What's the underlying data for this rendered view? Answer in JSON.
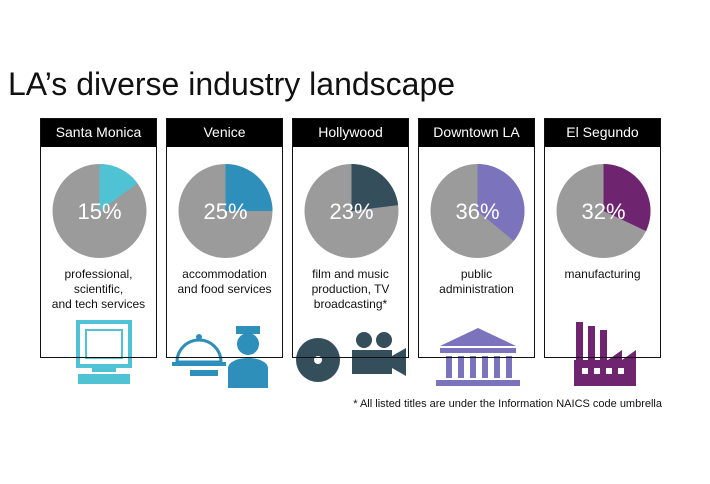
{
  "title": "LA’s diverse industry landscape",
  "chart_data": [
    {
      "type": "pie",
      "title": "Santa Monica",
      "values": [
        15
      ],
      "value_labels": [
        "15%"
      ],
      "color": "#4fc3d3",
      "caption": "professional,\nscientific,\nand tech services"
    },
    {
      "type": "pie",
      "title": "Venice",
      "values": [
        25
      ],
      "value_labels": [
        "25%"
      ],
      "color": "#2e8fba",
      "caption": "accommodation\nand food services"
    },
    {
      "type": "pie",
      "title": "Hollywood",
      "values": [
        23
      ],
      "value_labels": [
        "23%"
      ],
      "color": "#344e5c",
      "caption": "film and music\nproduction, TV\nbroadcasting*"
    },
    {
      "type": "pie",
      "title": "Downtown LA",
      "values": [
        36
      ],
      "value_labels": [
        "36%"
      ],
      "color": "#7b74bd",
      "caption": "public\nadministration"
    },
    {
      "type": "pie",
      "title": "El Segundo",
      "values": [
        32
      ],
      "value_labels": [
        "32%"
      ],
      "color": "#6f246f",
      "caption": "manufacturing"
    }
  ],
  "footnote": "* All listed titles are under the Information NAICS code umbrella"
}
